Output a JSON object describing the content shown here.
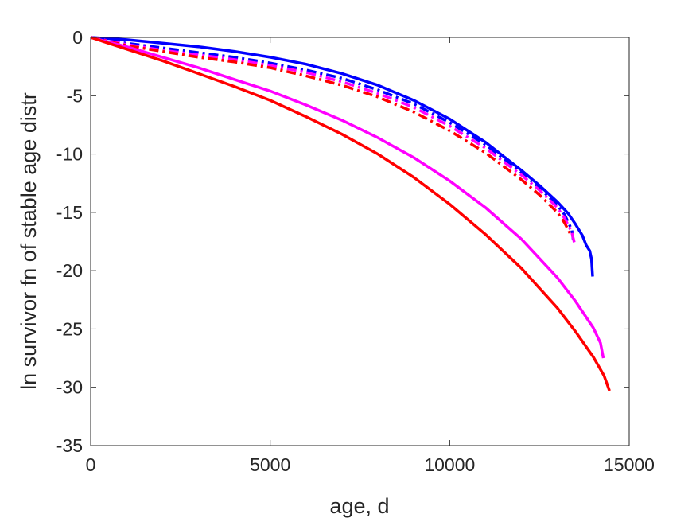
{
  "chart_data": {
    "type": "line",
    "title": "",
    "xlabel": "age, d",
    "ylabel": "ln survivor fn of stable age distr",
    "xlim": [
      0,
      15000
    ],
    "ylim": [
      -35,
      0
    ],
    "xticks": [
      0,
      5000,
      10000,
      15000
    ],
    "yticks": [
      0,
      -5,
      -10,
      -15,
      -20,
      -25,
      -30,
      -35
    ],
    "grid": false,
    "legend": "none",
    "series": [
      {
        "color": "#0000ff",
        "style": "solid",
        "points": [
          [
            0,
            0
          ],
          [
            1000,
            -0.2
          ],
          [
            2000,
            -0.5
          ],
          [
            3000,
            -0.8
          ],
          [
            4000,
            -1.2
          ],
          [
            5000,
            -1.7
          ],
          [
            6000,
            -2.3
          ],
          [
            7000,
            -3.1
          ],
          [
            8000,
            -4.1
          ],
          [
            9000,
            -5.4
          ],
          [
            10000,
            -7.0
          ],
          [
            11000,
            -9.0
          ],
          [
            12000,
            -11.4
          ],
          [
            12500,
            -12.7
          ],
          [
            13000,
            -14.1
          ],
          [
            13300,
            -15.1
          ],
          [
            13500,
            -16.0
          ],
          [
            13700,
            -17.0
          ],
          [
            13800,
            -17.8
          ],
          [
            13900,
            -18.3
          ],
          [
            13950,
            -19.0
          ],
          [
            13980,
            -20.5
          ]
        ]
      },
      {
        "color": "#0000ff",
        "style": "dashdot",
        "points": [
          [
            0,
            0
          ],
          [
            1000,
            -0.5
          ],
          [
            2000,
            -0.9
          ],
          [
            3000,
            -1.3
          ],
          [
            4000,
            -1.7
          ],
          [
            5000,
            -2.2
          ],
          [
            6000,
            -2.8
          ],
          [
            7000,
            -3.5
          ],
          [
            8000,
            -4.5
          ],
          [
            9000,
            -5.7
          ],
          [
            10000,
            -7.3
          ],
          [
            11000,
            -9.2
          ],
          [
            12000,
            -11.6
          ],
          [
            12500,
            -12.9
          ],
          [
            13000,
            -14.4
          ],
          [
            13200,
            -15.2
          ],
          [
            13400,
            -16.5
          ],
          [
            13450,
            -17.5
          ]
        ]
      },
      {
        "color": "#ff00ff",
        "style": "dashdot",
        "points": [
          [
            0,
            0
          ],
          [
            1000,
            -0.6
          ],
          [
            2000,
            -1.1
          ],
          [
            3000,
            -1.5
          ],
          [
            4000,
            -1.9
          ],
          [
            5000,
            -2.4
          ],
          [
            6000,
            -3.0
          ],
          [
            7000,
            -3.8
          ],
          [
            8000,
            -4.8
          ],
          [
            9000,
            -6.0
          ],
          [
            10000,
            -7.6
          ],
          [
            11000,
            -9.5
          ],
          [
            12000,
            -11.8
          ],
          [
            12500,
            -13.1
          ],
          [
            13000,
            -14.6
          ],
          [
            13200,
            -15.5
          ],
          [
            13400,
            -16.7
          ],
          [
            13480,
            -17.7
          ]
        ]
      },
      {
        "color": "#ff0000",
        "style": "dashdot",
        "points": [
          [
            0,
            0
          ],
          [
            1000,
            -0.7
          ],
          [
            2000,
            -1.2
          ],
          [
            3000,
            -1.7
          ],
          [
            4000,
            -2.1
          ],
          [
            5000,
            -2.6
          ],
          [
            6000,
            -3.3
          ],
          [
            7000,
            -4.1
          ],
          [
            8000,
            -5.1
          ],
          [
            9000,
            -6.4
          ],
          [
            10000,
            -8.0
          ],
          [
            11000,
            -9.9
          ],
          [
            12000,
            -12.2
          ],
          [
            12500,
            -13.5
          ],
          [
            13000,
            -15.0
          ],
          [
            13200,
            -15.9
          ],
          [
            13350,
            -16.8
          ]
        ]
      },
      {
        "color": "#ff00ff",
        "style": "solid",
        "points": [
          [
            0,
            0
          ],
          [
            1000,
            -0.8
          ],
          [
            2000,
            -1.7
          ],
          [
            3000,
            -2.6
          ],
          [
            4000,
            -3.6
          ],
          [
            5000,
            -4.6
          ],
          [
            6000,
            -5.8
          ],
          [
            7000,
            -7.1
          ],
          [
            8000,
            -8.6
          ],
          [
            9000,
            -10.3
          ],
          [
            10000,
            -12.3
          ],
          [
            11000,
            -14.6
          ],
          [
            12000,
            -17.3
          ],
          [
            13000,
            -20.6
          ],
          [
            13500,
            -22.6
          ],
          [
            14000,
            -24.9
          ],
          [
            14200,
            -26.2
          ],
          [
            14280,
            -27.5
          ]
        ]
      },
      {
        "color": "#ff0000",
        "style": "solid",
        "points": [
          [
            0,
            0
          ],
          [
            1000,
            -1.0
          ],
          [
            2000,
            -2.0
          ],
          [
            3000,
            -3.1
          ],
          [
            4000,
            -4.2
          ],
          [
            5000,
            -5.4
          ],
          [
            6000,
            -6.8
          ],
          [
            7000,
            -8.3
          ],
          [
            8000,
            -10.0
          ],
          [
            9000,
            -12.0
          ],
          [
            10000,
            -14.3
          ],
          [
            11000,
            -16.9
          ],
          [
            12000,
            -19.8
          ],
          [
            13000,
            -23.2
          ],
          [
            13500,
            -25.2
          ],
          [
            14000,
            -27.4
          ],
          [
            14300,
            -29.0
          ],
          [
            14450,
            -30.3
          ]
        ]
      }
    ]
  }
}
